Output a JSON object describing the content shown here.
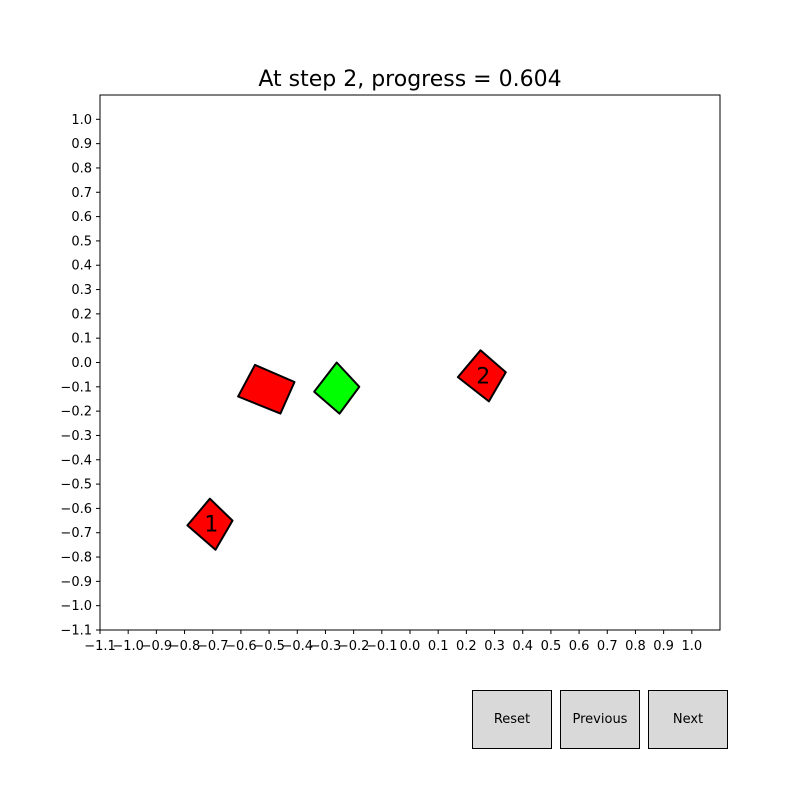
{
  "chart_data": {
    "type": "scatter",
    "title": "At step 2, progress = 0.604",
    "xlabel": "",
    "ylabel": "",
    "xlim": [
      -1.1,
      1.1
    ],
    "ylim": [
      -1.1,
      1.1
    ],
    "grid": false,
    "x_ticks": [
      -1.1,
      -1.0,
      -0.9,
      -0.8,
      -0.7,
      -0.6,
      -0.5,
      -0.4,
      -0.3,
      -0.2,
      -0.1,
      0.0,
      0.1,
      0.2,
      0.3,
      0.4,
      0.5,
      0.6,
      0.7,
      0.8,
      0.9,
      1.0
    ],
    "x_tick_labels": [
      "−1.1",
      "−1.0",
      "−0.9",
      "−0.8",
      "−0.7",
      "−0.6",
      "−0.5",
      "−0.4",
      "−0.3",
      "−0.2",
      "−0.1",
      "0.0",
      "0.1",
      "0.2",
      "0.3",
      "0.4",
      "0.5",
      "0.6",
      "0.7",
      "0.8",
      "0.9",
      "1.0"
    ],
    "y_ticks": [
      1.0,
      0.9,
      0.8,
      0.7,
      0.6,
      0.5,
      0.4,
      0.3,
      0.2,
      0.1,
      0.0,
      -0.1,
      -0.2,
      -0.3,
      -0.4,
      -0.5,
      -0.6,
      -0.7,
      -0.8,
      -0.9,
      -1.0,
      -1.1
    ],
    "y_tick_labels": [
      "1.0",
      "0.9",
      "0.8",
      "0.7",
      "0.6",
      "0.5",
      "0.4",
      "0.3",
      "0.2",
      "0.1",
      "0.0",
      "−0.1",
      "−0.2",
      "−0.3",
      "−0.4",
      "−0.5",
      "−0.6",
      "−0.7",
      "−0.8",
      "−0.9",
      "−1.0",
      "−1.1"
    ],
    "shapes": [
      {
        "id": "target-1",
        "label": "1",
        "color": "#ff0000",
        "corners": [
          [
            -0.71,
            -0.56
          ],
          [
            -0.63,
            -0.65
          ],
          [
            -0.69,
            -0.77
          ],
          [
            -0.79,
            -0.67
          ]
        ]
      },
      {
        "id": "target-2",
        "label": "2",
        "color": "#ff0000",
        "corners": [
          [
            0.25,
            0.05
          ],
          [
            0.34,
            -0.04
          ],
          [
            0.28,
            -0.16
          ],
          [
            0.17,
            -0.06
          ]
        ]
      },
      {
        "id": "agent-red",
        "label": "",
        "color": "#ff0000",
        "corners": [
          [
            -0.55,
            -0.01
          ],
          [
            -0.41,
            -0.08
          ],
          [
            -0.46,
            -0.21
          ],
          [
            -0.61,
            -0.14
          ]
        ]
      },
      {
        "id": "agent-green",
        "label": "",
        "color": "#00ff00",
        "corners": [
          [
            -0.26,
            0.0
          ],
          [
            -0.18,
            -0.1
          ],
          [
            -0.25,
            -0.21
          ],
          [
            -0.34,
            -0.12
          ]
        ]
      }
    ]
  },
  "controls": {
    "reset_label": "Reset",
    "previous_label": "Previous",
    "next_label": "Next"
  }
}
